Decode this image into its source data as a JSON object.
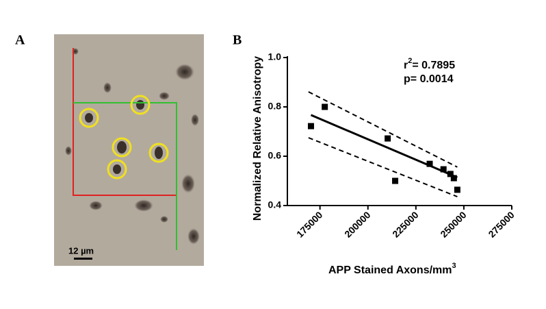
{
  "panel_a": {
    "label": "A",
    "scale_bar": "12 µm"
  },
  "chart_data": {
    "type": "scatter",
    "panel_label": "B",
    "x_label": "APP Stained Axons/mm",
    "x_label_sup": "3",
    "y_label": "Normalized Relative Anisotropy",
    "annotation": {
      "r_text": "r",
      "r_sup": "2",
      "r_value": "= 0.7895",
      "p_text": "p= 0.0014"
    },
    "x": [
      170300,
      177500,
      210300,
      214200,
      232200,
      239400,
      243000,
      244800,
      246600
    ],
    "values": [
      0.722,
      0.8,
      0.672,
      0.5,
      0.569,
      0.547,
      0.528,
      0.511,
      0.464
    ],
    "color": "#000000",
    "fit": {
      "x": [
        170300,
        246600
      ],
      "values": [
        0.767,
        0.514
      ]
    },
    "upper_band": {
      "x": [
        169000,
        246600
      ],
      "values": [
        0.861,
        0.556
      ]
    },
    "lower_band": {
      "x": [
        169000,
        246600
      ],
      "values": [
        0.675,
        0.436
      ]
    },
    "xlim": [
      158000,
      275000
    ],
    "xticks": [
      175000,
      200000,
      225000,
      250000,
      275000
    ],
    "ylim": [
      0.4,
      1.0
    ],
    "yticks": [
      0.4,
      0.6,
      0.8,
      {
        "value": 1.0,
        "label": "1.0"
      }
    ],
    "grid": false
  }
}
